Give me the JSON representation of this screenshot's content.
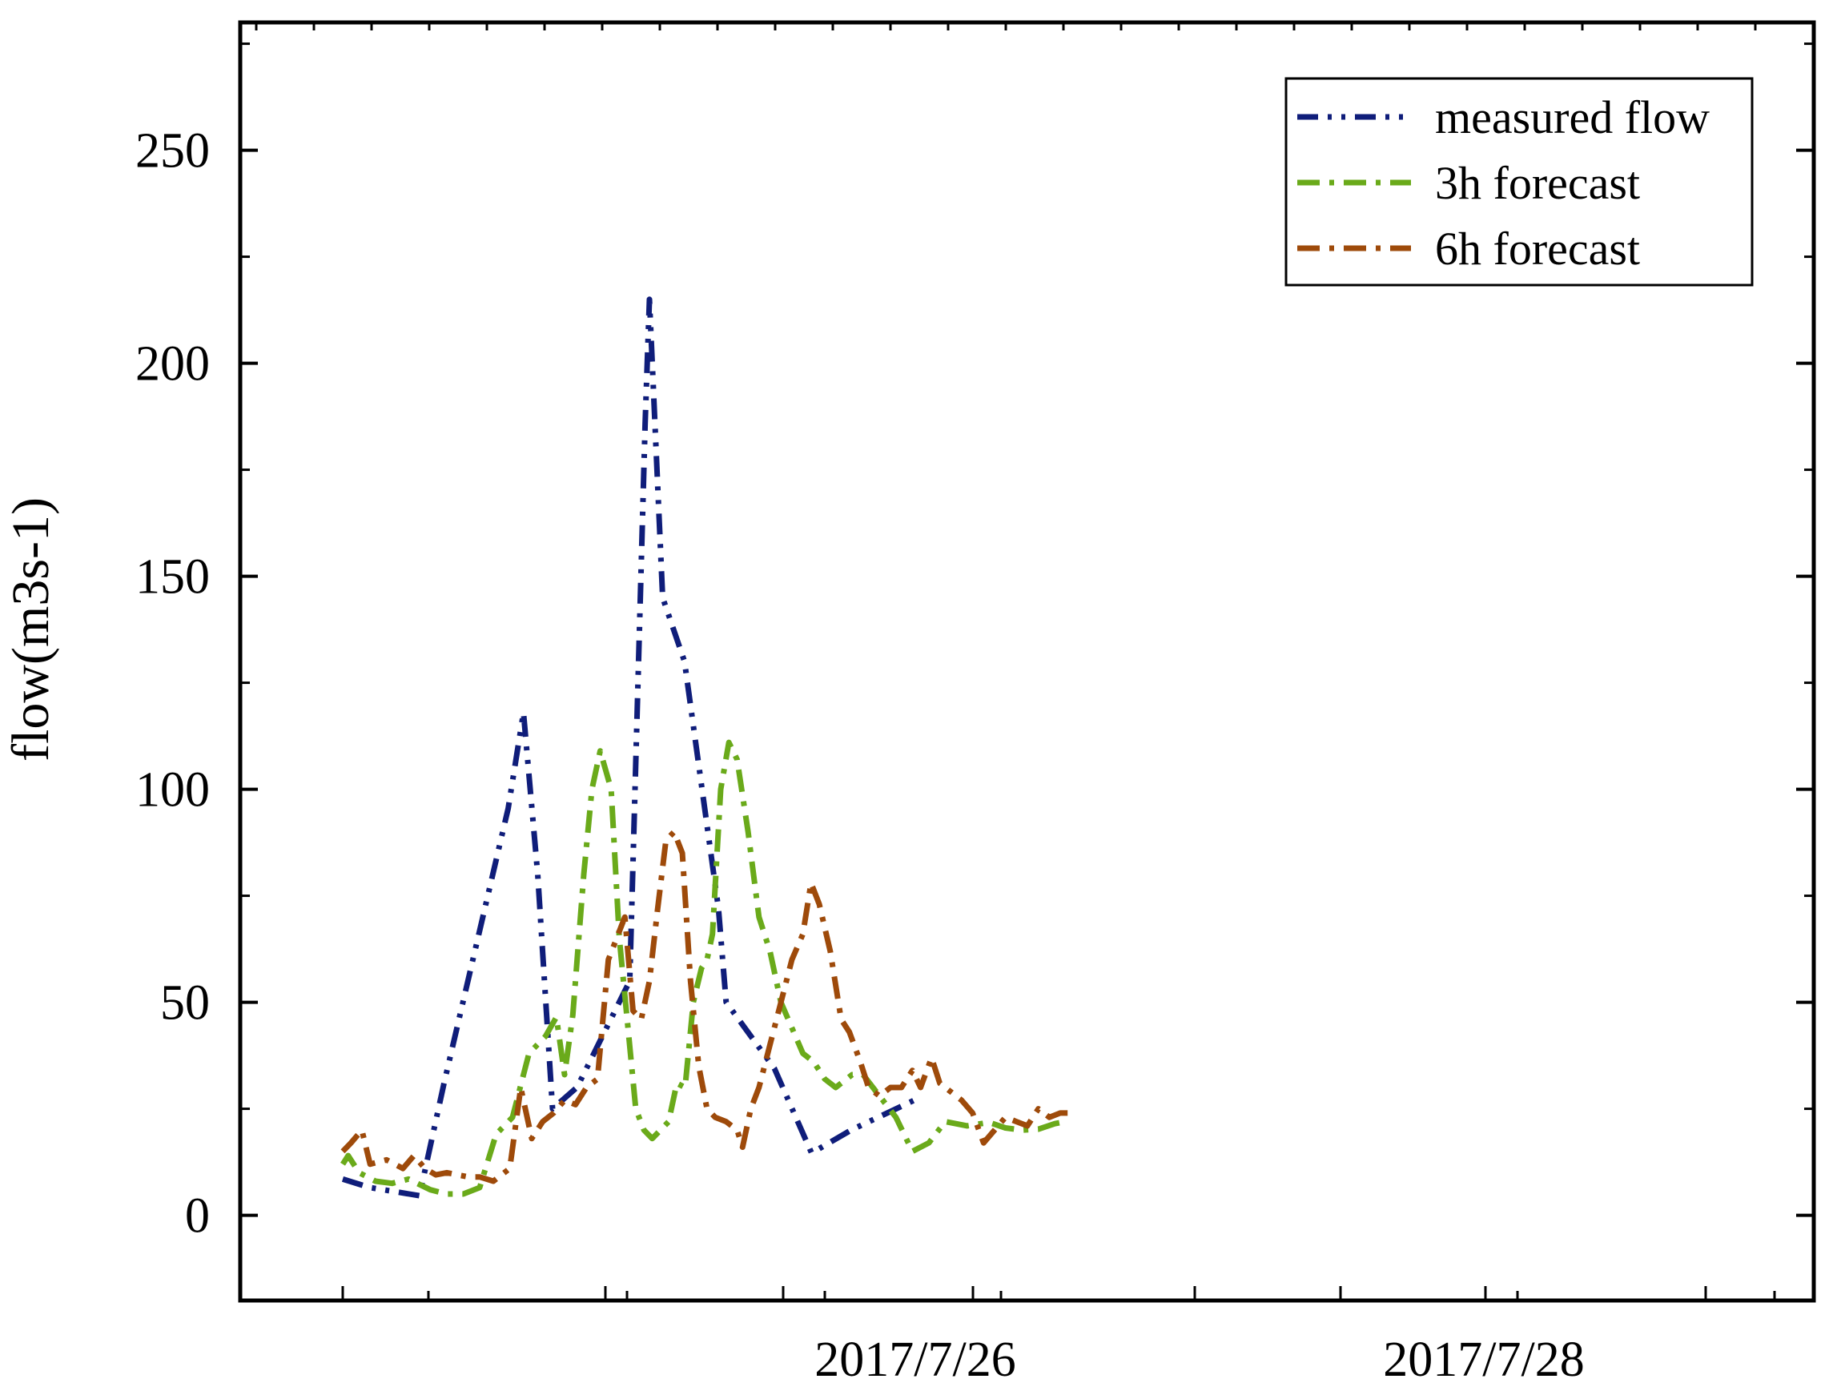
{
  "chart_data": {
    "type": "line",
    "title": "",
    "xlabel": "",
    "ylabel": "flow(m3s-1)",
    "x_tick_labels": [
      "2017/7/26",
      "2017/7/28"
    ],
    "y_ticks": [
      0,
      50,
      100,
      150,
      200,
      250
    ],
    "ylim": [
      -20,
      280
    ],
    "grid": false,
    "legend": "top-right",
    "series": [
      {
        "name": "measured flow",
        "color": "#0f1d7a",
        "dash": "dashdotdot",
        "points": [
          [
            0.0,
            8.5
          ],
          [
            0.5,
            6.5
          ],
          [
            1.4,
            4.6
          ],
          [
            1.85,
            31
          ],
          [
            3.02,
            95.5
          ],
          [
            3.3,
            118
          ],
          [
            3.56,
            80
          ],
          [
            3.83,
            25
          ],
          [
            4.28,
            30.1
          ],
          [
            5.24,
            55
          ],
          [
            5.52,
            185.7
          ],
          [
            5.6,
            215
          ],
          [
            5.84,
            145
          ],
          [
            6.24,
            130
          ],
          [
            6.86,
            72
          ],
          [
            7.0,
            50
          ],
          [
            7.88,
            34.5
          ],
          [
            8.56,
            14.6
          ],
          [
            9.28,
            20
          ],
          [
            10.48,
            27.3
          ]
        ]
      },
      {
        "name": "3h forecast",
        "color": "#6aaa1a",
        "dash": "dashdot",
        "points": [
          [
            0.0,
            12
          ],
          [
            0.1,
            14
          ],
          [
            0.3,
            10
          ],
          [
            0.6,
            8
          ],
          [
            0.9,
            7.5
          ],
          [
            1.2,
            8.5
          ],
          [
            1.6,
            6
          ],
          [
            1.9,
            5
          ],
          [
            2.2,
            5
          ],
          [
            2.5,
            6.5
          ],
          [
            2.8,
            19
          ],
          [
            3.1,
            23
          ],
          [
            3.4,
            38
          ],
          [
            3.7,
            42
          ],
          [
            3.9,
            46.5
          ],
          [
            4.05,
            33
          ],
          [
            4.2,
            47
          ],
          [
            4.4,
            80
          ],
          [
            4.55,
            100
          ],
          [
            4.7,
            109
          ],
          [
            4.9,
            100
          ],
          [
            5.05,
            65
          ],
          [
            5.2,
            45
          ],
          [
            5.35,
            25
          ],
          [
            5.5,
            20
          ],
          [
            5.65,
            18
          ],
          [
            5.8,
            20
          ],
          [
            5.95,
            22
          ],
          [
            6.1,
            31
          ],
          [
            6.25,
            30
          ],
          [
            6.4,
            50
          ],
          [
            6.55,
            58
          ],
          [
            6.65,
            60
          ],
          [
            6.75,
            66
          ],
          [
            6.9,
            100
          ],
          [
            7.05,
            111
          ],
          [
            7.2,
            107
          ],
          [
            7.4,
            90
          ],
          [
            7.6,
            70
          ],
          [
            7.8,
            62
          ],
          [
            8.0,
            50
          ],
          [
            8.2,
            44
          ],
          [
            8.4,
            38
          ],
          [
            8.6,
            36
          ],
          [
            8.8,
            32
          ],
          [
            9.0,
            30
          ],
          [
            9.3,
            33
          ],
          [
            9.5,
            33
          ],
          [
            9.8,
            28
          ],
          [
            10.1,
            23
          ],
          [
            10.4,
            15
          ],
          [
            10.7,
            17
          ],
          [
            11.0,
            22
          ],
          [
            11.4,
            21
          ],
          [
            11.8,
            21.8
          ],
          [
            12.1,
            20.5
          ],
          [
            12.4,
            20
          ],
          [
            12.7,
            20.2
          ],
          [
            13.0,
            21.5
          ],
          [
            13.2,
            22
          ]
        ]
      },
      {
        "name": "6h forecast",
        "color": "#9e4a0a",
        "dash": "dashdot",
        "points": [
          [
            0.0,
            15
          ],
          [
            0.15,
            17
          ],
          [
            0.35,
            20
          ],
          [
            0.5,
            12
          ],
          [
            0.8,
            13
          ],
          [
            1.1,
            11
          ],
          [
            1.3,
            14
          ],
          [
            1.5,
            11
          ],
          [
            1.7,
            9.5
          ],
          [
            1.9,
            10
          ],
          [
            2.1,
            9.5
          ],
          [
            2.3,
            9
          ],
          [
            2.5,
            9
          ],
          [
            2.75,
            8
          ],
          [
            3.05,
            11
          ],
          [
            3.25,
            30
          ],
          [
            3.45,
            18
          ],
          [
            3.65,
            22
          ],
          [
            3.85,
            24
          ],
          [
            4.05,
            27
          ],
          [
            4.25,
            26
          ],
          [
            4.45,
            30
          ],
          [
            4.65,
            32
          ],
          [
            4.85,
            60
          ],
          [
            5.0,
            65
          ],
          [
            5.15,
            70
          ],
          [
            5.3,
            48
          ],
          [
            5.45,
            46
          ],
          [
            5.6,
            55
          ],
          [
            5.75,
            72
          ],
          [
            5.9,
            88
          ],
          [
            6.05,
            90
          ],
          [
            6.2,
            85
          ],
          [
            6.35,
            55
          ],
          [
            6.5,
            35
          ],
          [
            6.65,
            25
          ],
          [
            6.8,
            23
          ],
          [
            7.0,
            22
          ],
          [
            7.2,
            20
          ],
          [
            7.3,
            16
          ],
          [
            7.45,
            25
          ],
          [
            7.6,
            30
          ],
          [
            7.8,
            40
          ],
          [
            8.0,
            50
          ],
          [
            8.2,
            60
          ],
          [
            8.4,
            66
          ],
          [
            8.55,
            78
          ],
          [
            8.7,
            73
          ],
          [
            8.9,
            62
          ],
          [
            9.1,
            46
          ],
          [
            9.25,
            43
          ],
          [
            9.45,
            36
          ],
          [
            9.6,
            30
          ],
          [
            9.8,
            28
          ],
          [
            10.0,
            30
          ],
          [
            10.2,
            30
          ],
          [
            10.4,
            34
          ],
          [
            10.55,
            30
          ],
          [
            10.75,
            37
          ],
          [
            10.9,
            31
          ],
          [
            11.1,
            29
          ],
          [
            11.3,
            27
          ],
          [
            11.5,
            24
          ],
          [
            11.7,
            17
          ],
          [
            11.9,
            20
          ],
          [
            12.1,
            23
          ],
          [
            12.3,
            22
          ],
          [
            12.5,
            21
          ],
          [
            12.7,
            25
          ],
          [
            12.9,
            23
          ],
          [
            13.1,
            24
          ],
          [
            13.3,
            24
          ]
        ]
      }
    ]
  }
}
